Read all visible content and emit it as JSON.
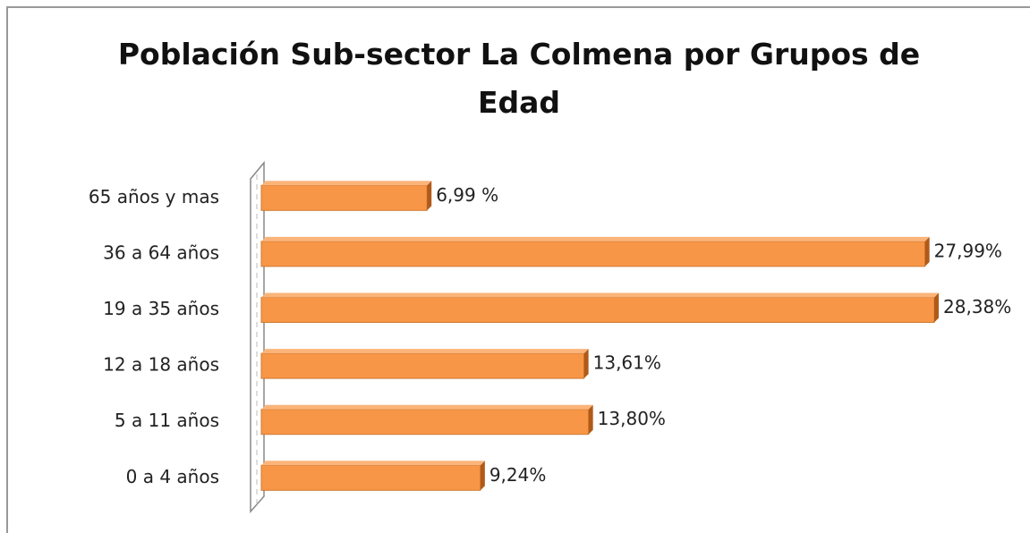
{
  "chart_data": {
    "type": "bar",
    "orientation": "horizontal",
    "title": "Población Sub-sector La Colmena por Grupos de Edad",
    "categories": [
      "65 años y mas",
      "36 a 64 años",
      "19 a 35 años",
      "12 a 18 años",
      "5 a 11 años",
      "0 a 4 años"
    ],
    "values": [
      6.99,
      27.99,
      28.38,
      13.61,
      13.8,
      9.24
    ],
    "value_labels": [
      "6,99 %",
      "27,99%",
      "28,38%",
      "13,61%",
      "13,80%",
      "9,24%"
    ],
    "color": "#f79646"
  }
}
